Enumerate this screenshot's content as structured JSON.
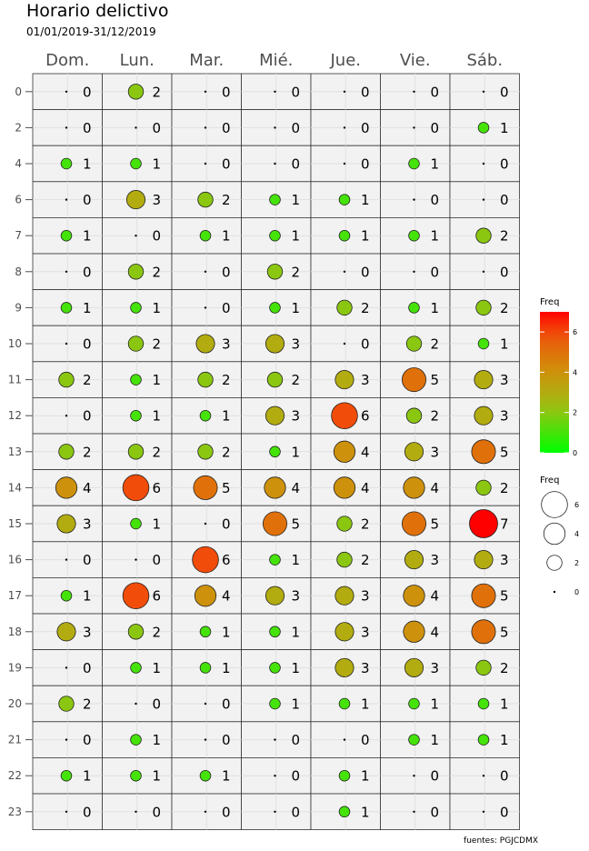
{
  "title": "Horario delictivo",
  "subtitle": "01/01/2019-31/12/2019",
  "caption": "fuentes: PGJCDMX",
  "chart_data": {
    "type": "scatter",
    "encoding": "bubble grid: point size and color both encode Freq",
    "x_categories": [
      "Dom.",
      "Lun.",
      "Mar.",
      "Mié.",
      "Jue.",
      "Vie.",
      "Sáb."
    ],
    "y_categories": [
      "0",
      "2",
      "4",
      "6",
      "7",
      "8",
      "9",
      "10",
      "11",
      "12",
      "13",
      "14",
      "15",
      "16",
      "17",
      "18",
      "19",
      "20",
      "21",
      "22",
      "23"
    ],
    "values": [
      [
        0,
        2,
        0,
        0,
        0,
        0,
        0
      ],
      [
        0,
        0,
        0,
        0,
        0,
        0,
        1
      ],
      [
        1,
        1,
        0,
        0,
        0,
        1,
        0
      ],
      [
        0,
        3,
        2,
        1,
        1,
        0,
        0
      ],
      [
        1,
        0,
        1,
        1,
        1,
        1,
        2
      ],
      [
        0,
        2,
        0,
        2,
        0,
        0,
        0
      ],
      [
        1,
        1,
        0,
        1,
        2,
        1,
        2
      ],
      [
        0,
        2,
        3,
        3,
        0,
        2,
        1
      ],
      [
        2,
        1,
        2,
        2,
        3,
        5,
        3
      ],
      [
        0,
        1,
        1,
        3,
        6,
        2,
        3
      ],
      [
        2,
        2,
        2,
        1,
        4,
        3,
        5
      ],
      [
        4,
        6,
        5,
        4,
        4,
        4,
        2
      ],
      [
        3,
        1,
        0,
        5,
        2,
        5,
        7
      ],
      [
        0,
        0,
        6,
        1,
        2,
        3,
        3
      ],
      [
        1,
        6,
        4,
        3,
        3,
        4,
        5
      ],
      [
        3,
        2,
        1,
        1,
        3,
        4,
        5
      ],
      [
        0,
        1,
        1,
        1,
        3,
        3,
        2
      ],
      [
        2,
        0,
        0,
        1,
        1,
        1,
        1
      ],
      [
        0,
        1,
        0,
        0,
        0,
        1,
        1
      ],
      [
        1,
        1,
        1,
        0,
        1,
        0,
        0
      ],
      [
        0,
        0,
        0,
        0,
        1,
        0,
        0
      ]
    ],
    "color_legend": {
      "title": "Freq",
      "ticks": [
        0,
        2,
        4,
        6
      ],
      "range": [
        0,
        7
      ],
      "low_color": "#00ff00",
      "high_color": "#ff0000"
    },
    "size_legend": {
      "title": "Freq",
      "ticks": [
        6,
        4,
        2,
        0
      ]
    },
    "facet_background": "#f2f2f2",
    "grid": true
  }
}
